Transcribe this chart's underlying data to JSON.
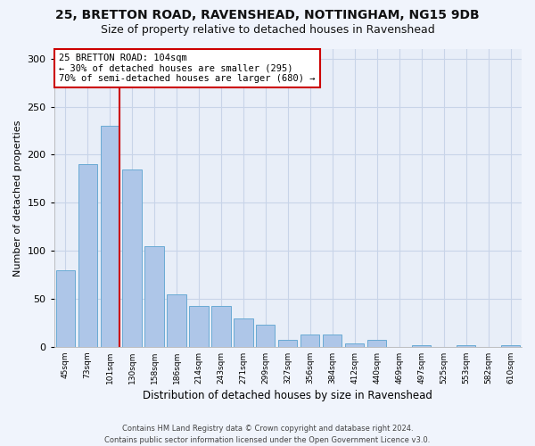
{
  "title_line1": "25, BRETTON ROAD, RAVENSHEAD, NOTTINGHAM, NG15 9DB",
  "title_line2": "Size of property relative to detached houses in Ravenshead",
  "xlabel": "Distribution of detached houses by size in Ravenshead",
  "ylabel": "Number of detached properties",
  "categories": [
    "45sqm",
    "73sqm",
    "101sqm",
    "130sqm",
    "158sqm",
    "186sqm",
    "214sqm",
    "243sqm",
    "271sqm",
    "299sqm",
    "327sqm",
    "356sqm",
    "384sqm",
    "412sqm",
    "440sqm",
    "469sqm",
    "497sqm",
    "525sqm",
    "553sqm",
    "582sqm",
    "610sqm"
  ],
  "values": [
    80,
    190,
    230,
    185,
    105,
    55,
    43,
    43,
    30,
    23,
    7,
    13,
    13,
    4,
    7,
    0,
    2,
    0,
    2,
    0,
    2
  ],
  "bar_color": "#aec6e8",
  "bar_edge_color": "#6aaad4",
  "annotation_box_text": "25 BRETTON ROAD: 104sqm\n← 30% of detached houses are smaller (295)\n70% of semi-detached houses are larger (680) →",
  "annotation_box_color": "#ffffff",
  "annotation_box_edge_color": "#cc0000",
  "vline_color": "#cc0000",
  "ylim": [
    0,
    310
  ],
  "yticks": [
    0,
    50,
    100,
    150,
    200,
    250,
    300
  ],
  "grid_color": "#c8d4e8",
  "background_color": "#e8eef8",
  "fig_background_color": "#f0f4fc",
  "footer": "Contains HM Land Registry data © Crown copyright and database right 2024.\nContains public sector information licensed under the Open Government Licence v3.0.",
  "title_fontsize": 10,
  "subtitle_fontsize": 9,
  "bar_width": 0.85,
  "property_bar_index": 2
}
